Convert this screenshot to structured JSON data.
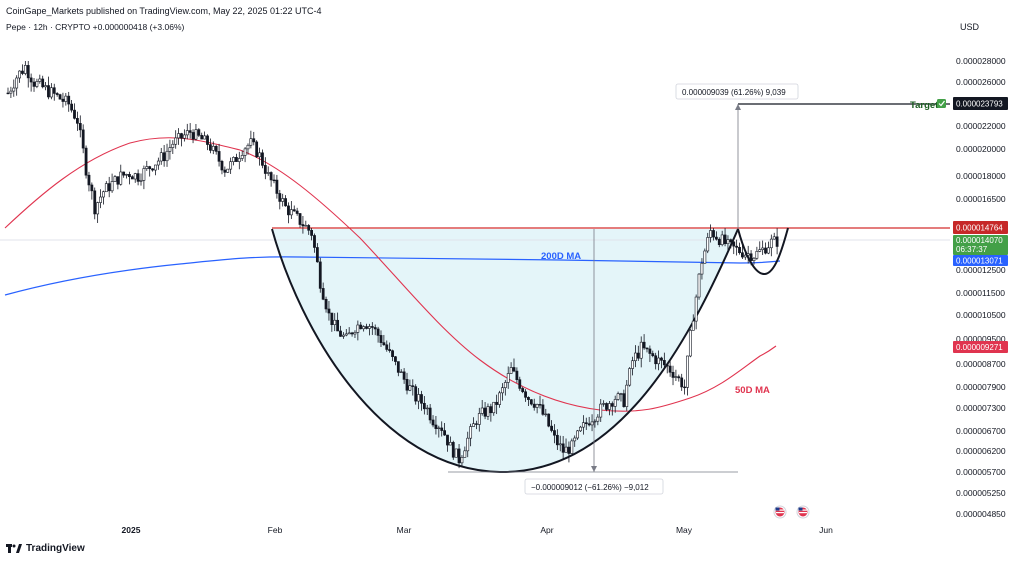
{
  "header": {
    "publisher": "CoinGape_Markets published on TradingView.com, May 22, 2025 01:22 UTC-4",
    "symbol": "Pepe · 12h · CRYPTO",
    "change": "+0.000000418 (+3.06%)",
    "currency": "USD"
  },
  "footer": {
    "brand": "TradingView"
  },
  "colors": {
    "ma200": "#2962ff",
    "ma50": "#e0344f",
    "resistance": "#d32f2f",
    "cup_fill": "#dff3f8",
    "candle": "#131722",
    "target_tag": "#131722",
    "last_price_tag": "#43a047"
  },
  "chart_data": {
    "type": "candlestick",
    "title": "",
    "xlabel": "",
    "ylabel": "",
    "y_axis_ticks": [
      "0.000028000",
      "0.000026000",
      "0.000022000",
      "0.000020000",
      "0.000018000",
      "0.000016500",
      "0.000012500",
      "0.000011500",
      "0.000010500",
      "0.000009500",
      "0.000008700",
      "0.000007900",
      "0.000007300",
      "0.000006700",
      "0.000006200",
      "0.000005700",
      "0.000005250",
      "0.000004850"
    ],
    "x_axis_ticks": [
      "2025",
      "Feb",
      "Mar",
      "Apr",
      "May",
      "Jun"
    ],
    "price_tags": {
      "target_label": "Target",
      "target": "0.000023793",
      "resistance": "0.000014764",
      "last_price": "0.000014070",
      "countdown": "06:37:37",
      "ma200_value": "0.000013071",
      "ma50_value": "0.000009271"
    },
    "annotations": {
      "ma200_label": "200D MA",
      "ma50_label": "50D MA",
      "up_measure": "0.000009039 (61.26%) 9,039",
      "down_measure": "−0.000009012 (−61.26%) −9,012"
    },
    "closes": [
      25.0,
      26.5,
      27.5,
      26.0,
      25.5,
      25.0,
      24.5,
      24.0,
      22.5,
      18.5,
      16.0,
      17.0,
      17.5,
      18.0,
      18.2,
      18.0,
      18.5,
      19.0,
      19.5,
      20.5,
      21.0,
      21.5,
      21.0,
      20.5,
      19.5,
      18.5,
      19.0,
      20.0,
      20.5,
      19.5,
      18.0,
      17.0,
      16.0,
      15.5,
      15.0,
      14.5,
      12.0,
      10.5,
      9.8,
      9.5,
      10.0,
      10.2,
      10.0,
      9.5,
      9.0,
      8.5,
      8.0,
      7.6,
      7.4,
      7.0,
      6.8,
      6.3,
      6.0,
      6.5,
      7.0,
      7.2,
      7.3,
      7.8,
      8.5,
      8.0,
      7.6,
      7.4,
      7.0,
      6.5,
      6.2,
      6.3,
      6.7,
      7.0,
      7.2,
      7.4,
      7.6,
      7.5,
      8.8,
      9.2,
      9.0,
      8.8,
      8.6,
      8.3,
      7.9,
      10.5,
      13.0,
      14.6,
      14.2,
      13.8,
      13.6,
      13.4,
      13.3,
      13.6,
      14.0,
      14.07
    ],
    "cup_bottom": "0.000005700",
    "resistance_level": "0.000014764",
    "target_level": "0.000023793"
  }
}
